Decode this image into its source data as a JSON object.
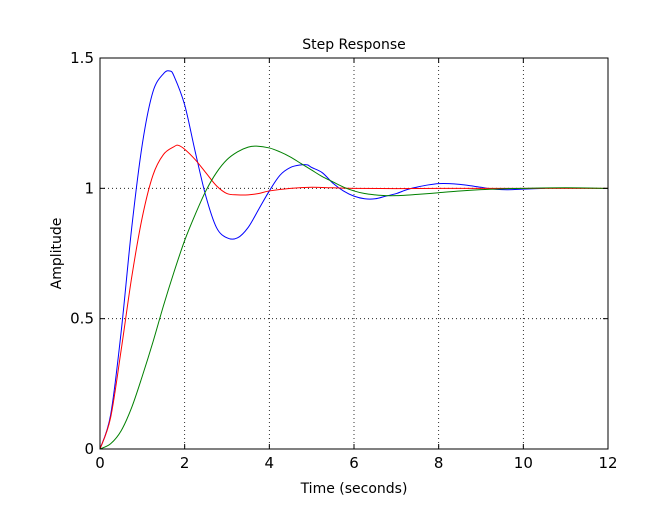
{
  "chart_data": {
    "type": "line",
    "title": "Step Response",
    "xlabel": "Time (seconds)",
    "ylabel": "Amplitude",
    "xlim": [
      0,
      12
    ],
    "ylim": [
      0,
      1.5
    ],
    "x_ticks": [
      "0",
      "2",
      "4",
      "6",
      "8",
      "10",
      "12"
    ],
    "y_ticks": [
      "0",
      "0.5",
      "1",
      "1.5"
    ],
    "x_tick_values": [
      0,
      2,
      4,
      6,
      8,
      10,
      12
    ],
    "y_tick_values": [
      0,
      0.5,
      1,
      1.5
    ],
    "grid": true,
    "legend": "none",
    "series": [
      {
        "color": "#0000ff",
        "x": [
          0,
          0.25,
          0.5,
          0.75,
          1.0,
          1.25,
          1.5,
          1.65,
          1.75,
          2.0,
          2.25,
          2.5,
          2.75,
          3.0,
          3.25,
          3.5,
          3.75,
          4.0,
          4.25,
          4.5,
          4.75,
          4.9,
          5.0,
          5.25,
          5.5,
          5.75,
          6.0,
          6.25,
          6.5,
          6.75,
          7.0,
          7.25,
          7.5,
          7.75,
          8.0,
          8.25,
          8.5,
          8.75,
          9.0,
          9.25,
          9.5,
          9.75,
          10.0,
          10.5
        ],
        "y": [
          0,
          0.13,
          0.45,
          0.85,
          1.17,
          1.37,
          1.44,
          1.45,
          1.43,
          1.32,
          1.14,
          0.97,
          0.85,
          0.81,
          0.81,
          0.85,
          0.92,
          0.99,
          1.05,
          1.08,
          1.09,
          1.09,
          1.08,
          1.06,
          1.02,
          0.99,
          0.97,
          0.96,
          0.96,
          0.97,
          0.98,
          0.995,
          1.005,
          1.013,
          1.018,
          1.018,
          1.015,
          1.01,
          1.004,
          0.998,
          0.995,
          0.995,
          0.997,
          1.0
        ]
      },
      {
        "color": "#ff0000",
        "x": [
          0,
          0.25,
          0.5,
          0.75,
          1.0,
          1.25,
          1.5,
          1.75,
          1.85,
          2.0,
          2.25,
          2.5,
          2.75,
          3.0,
          3.25,
          3.5,
          3.75,
          4.0,
          4.5,
          5.0,
          5.5,
          6.0,
          7.0,
          8.0,
          9.0,
          10.0,
          11.0,
          12.0
        ],
        "y": [
          0,
          0.12,
          0.38,
          0.66,
          0.89,
          1.05,
          1.13,
          1.16,
          1.165,
          1.15,
          1.11,
          1.06,
          1.01,
          0.98,
          0.975,
          0.975,
          0.98,
          0.99,
          1.0,
          1.004,
          1.002,
          1.0,
          0.999,
          1.0,
          1.0,
          1.0,
          1.0,
          1.0
        ]
      },
      {
        "color": "#008000",
        "x": [
          0,
          0.25,
          0.5,
          0.75,
          1.0,
          1.25,
          1.5,
          1.75,
          2.0,
          2.25,
          2.5,
          2.75,
          3.0,
          3.25,
          3.5,
          3.7,
          4.0,
          4.25,
          4.5,
          4.75,
          5.0,
          5.25,
          5.5,
          5.75,
          6.0,
          6.25,
          6.5,
          6.75,
          7.0,
          7.25,
          7.5,
          8.0,
          8.5,
          9.0,
          9.5,
          10.0,
          11.0,
          12.0
        ],
        "y": [
          0,
          0.02,
          0.07,
          0.16,
          0.28,
          0.41,
          0.55,
          0.68,
          0.8,
          0.9,
          0.99,
          1.06,
          1.11,
          1.14,
          1.158,
          1.162,
          1.155,
          1.14,
          1.12,
          1.095,
          1.07,
          1.045,
          1.025,
          1.005,
          0.99,
          0.98,
          0.975,
          0.972,
          0.972,
          0.974,
          0.977,
          0.983,
          0.99,
          0.995,
          0.998,
          1.0,
          1.002,
          1.0
        ]
      }
    ]
  }
}
